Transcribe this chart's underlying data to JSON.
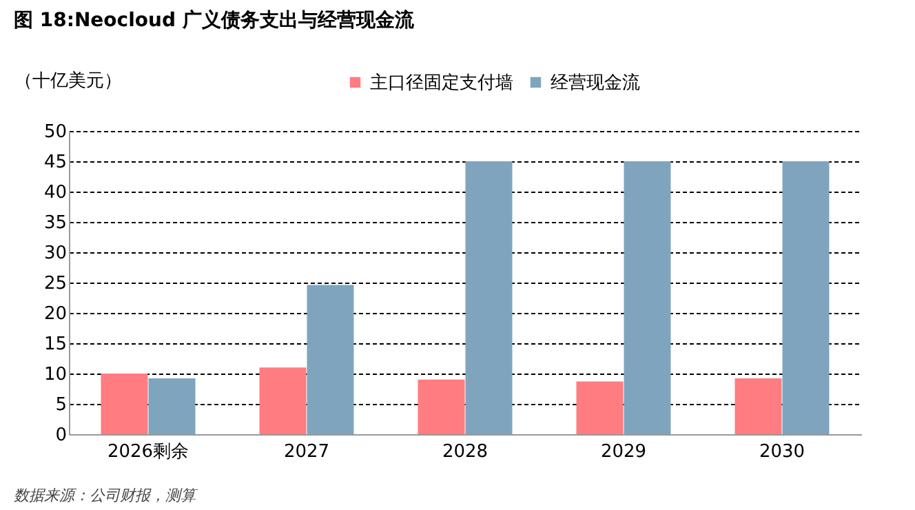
{
  "chart_data": {
    "type": "bar",
    "title": "图 18:Neocloud 广义债务支出与经营现金流",
    "ylabel": "（十亿美元）",
    "categories": [
      "2026剩余",
      "2027",
      "2028",
      "2029",
      "2030"
    ],
    "series": [
      {
        "name": "主口径固定支付墙",
        "color": "#ff7c80",
        "values": [
          10,
          11,
          9,
          8.7,
          9.2
        ]
      },
      {
        "name": "经营现金流",
        "color": "#7fa5be",
        "values": [
          9.2,
          24.6,
          45,
          45,
          45
        ]
      }
    ],
    "ylim": [
      0,
      50
    ],
    "yticks": [
      0,
      5,
      10,
      15,
      20,
      25,
      30,
      35,
      40,
      45,
      50
    ],
    "grid": "y",
    "legend": "top",
    "annotations": [
      "数据来源：公司财报，测算"
    ]
  }
}
